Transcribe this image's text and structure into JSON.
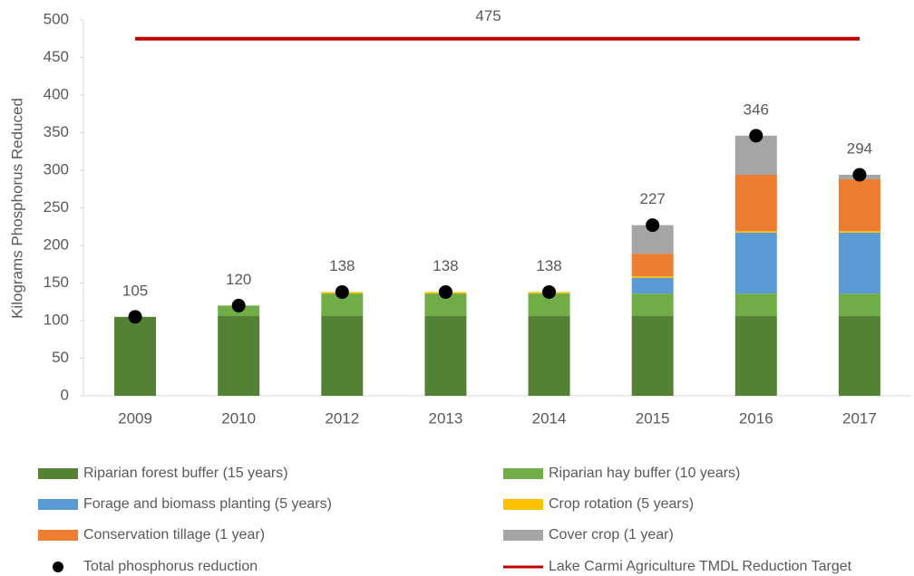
{
  "chart_data": {
    "type": "bar",
    "y_label": "Kilograms Phosphorus Reduced",
    "categories": [
      "2009",
      "2010",
      "2012",
      "2013",
      "2014",
      "2015",
      "2016",
      "2017"
    ],
    "series": [
      {
        "name": "Riparian forest buffer (15 years)",
        "color": "#548235",
        "values": [
          105,
          106,
          106,
          106,
          106,
          106,
          106,
          106
        ]
      },
      {
        "name": "Riparian hay buffer (10 years)",
        "color": "#70ad47",
        "values": [
          0,
          14,
          30,
          30,
          30,
          30,
          30,
          30
        ]
      },
      {
        "name": "Forage and biomass planting (5 years)",
        "color": "#5b9bd5",
        "values": [
          0,
          0,
          0,
          0,
          0,
          21,
          81,
          81
        ]
      },
      {
        "name": "Crop rotation (5 years)",
        "color": "#ffc000",
        "values": [
          0,
          0,
          2,
          2,
          2,
          2,
          2,
          2
        ]
      },
      {
        "name": "Conservation tillage (1 year)",
        "color": "#ed7d31",
        "values": [
          0,
          0,
          0,
          0,
          0,
          30,
          75,
          69
        ]
      },
      {
        "name": "Cover crop (1 year)",
        "color": "#a5a5a5",
        "values": [
          0,
          0,
          0,
          0,
          0,
          38,
          52,
          6
        ]
      }
    ],
    "total": {
      "name": "Total phosphorus reduction",
      "color": "#000000",
      "values": [
        105,
        120,
        138,
        138,
        138,
        227,
        346,
        294
      ]
    },
    "target": {
      "name": "Lake Carmi Agriculture TMDL Reduction Target",
      "color": "#c00000",
      "value": 475
    },
    "ylim": [
      0,
      500
    ],
    "yticks": [
      0,
      50,
      100,
      150,
      200,
      250,
      300,
      350,
      400,
      450,
      500
    ],
    "grid": false
  }
}
